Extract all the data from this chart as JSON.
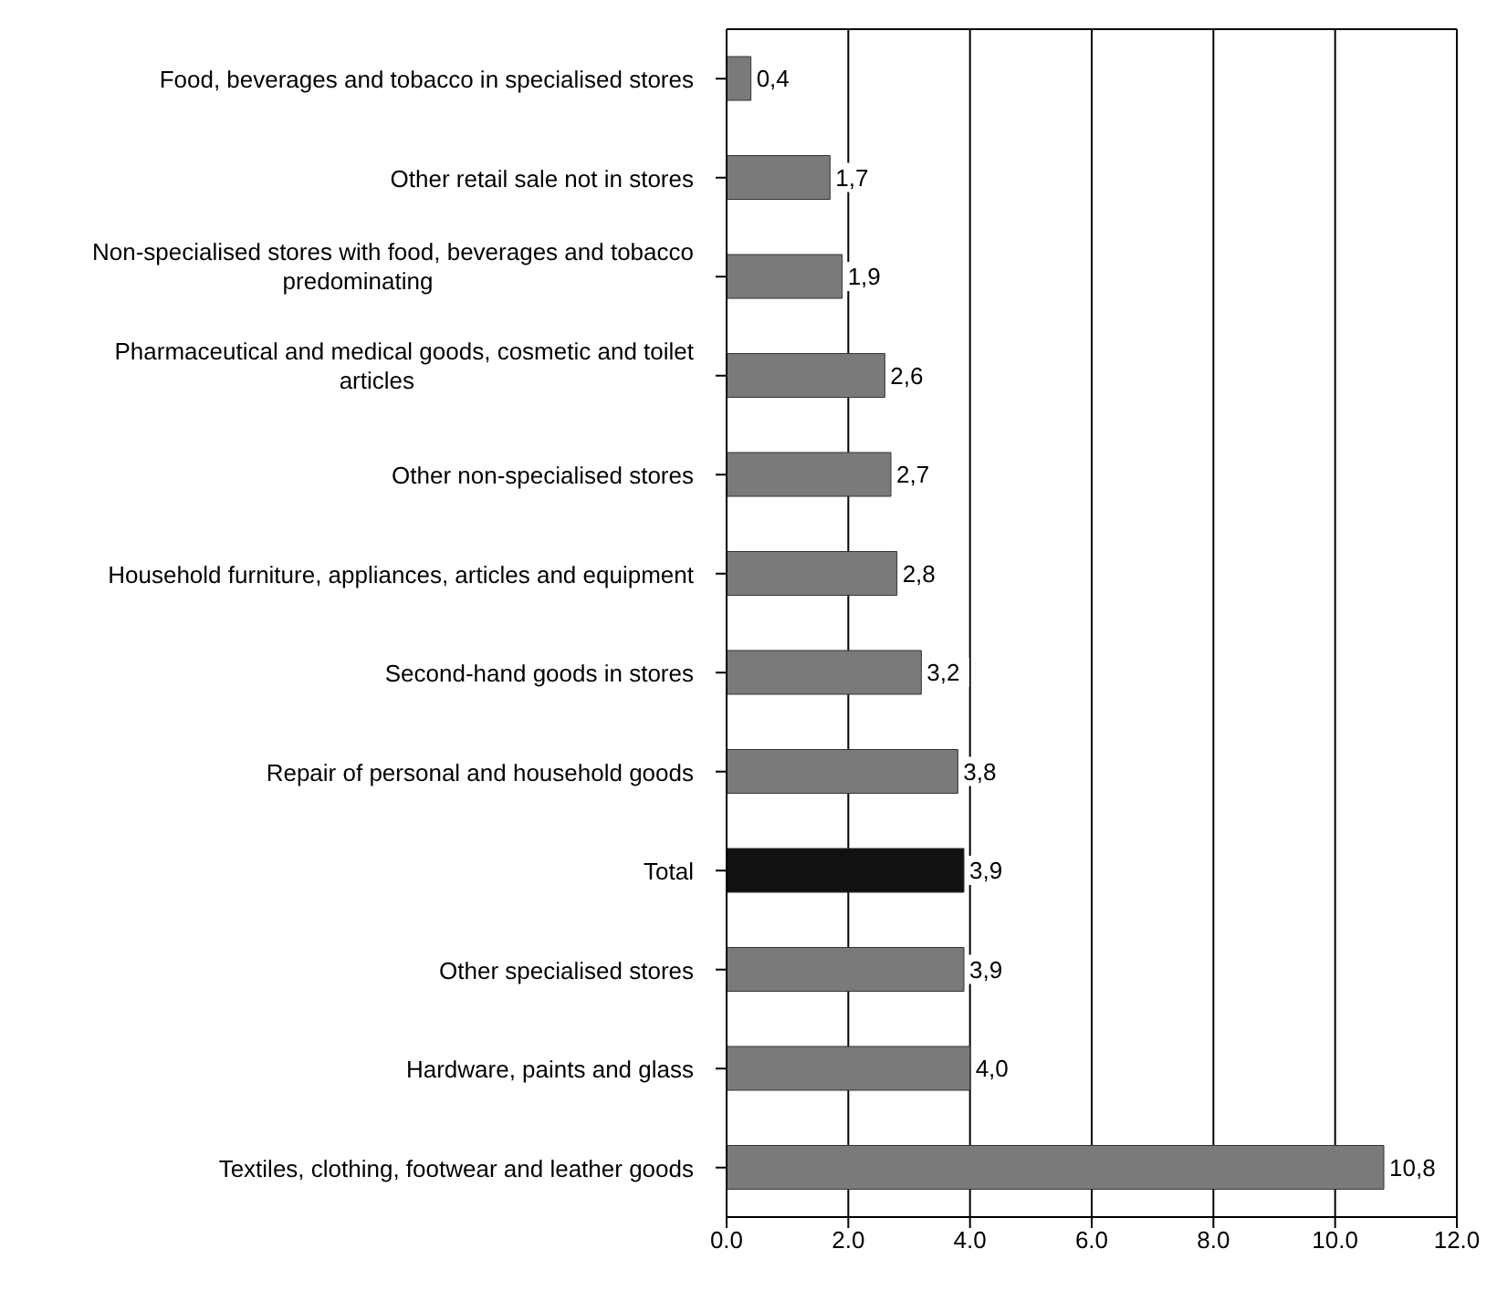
{
  "chart_data": {
    "type": "bar",
    "orientation": "horizontal",
    "categories": [
      "Food, beverages and tobacco in specialised stores",
      "Other retail sale not in stores",
      "Non-specialised stores with food, beverages and tobacco predominating",
      "Pharmaceutical and medical goods, cosmetic and toilet articles",
      "Other non-specialised stores",
      "Household furniture, appliances, articles and equipment",
      "Second-hand goods in stores",
      "Repair of personal and household goods",
      "Total",
      "Other specialised stores",
      "Hardware, paints and glass",
      "Textiles, clothing, footwear and leather goods"
    ],
    "values": [
      0.4,
      1.7,
      1.9,
      2.6,
      2.7,
      2.8,
      3.2,
      3.8,
      3.9,
      3.9,
      4.0,
      10.8
    ],
    "value_labels": [
      "0,4",
      "1,7",
      "1,9",
      "2,6",
      "2,7",
      "2,8",
      "3,2",
      "3,8",
      "3,9",
      "3,9",
      "4,0",
      "10,8"
    ],
    "colors": [
      "#7a7a7a",
      "#7a7a7a",
      "#7a7a7a",
      "#7a7a7a",
      "#7a7a7a",
      "#7a7a7a",
      "#7a7a7a",
      "#7a7a7a",
      "#111111",
      "#7a7a7a",
      "#7a7a7a",
      "#7a7a7a"
    ],
    "xlim": [
      0,
      12
    ],
    "xticks": [
      {
        "value": 0,
        "label": "0.0"
      },
      {
        "value": 2,
        "label": "2.0"
      },
      {
        "value": 4,
        "label": "4.0"
      },
      {
        "value": 6,
        "label": "6.0"
      },
      {
        "value": 8,
        "label": "8.0"
      },
      {
        "value": 10,
        "label": "10.0"
      },
      {
        "value": 12,
        "label": "12.0"
      }
    ],
    "grid": "x"
  }
}
